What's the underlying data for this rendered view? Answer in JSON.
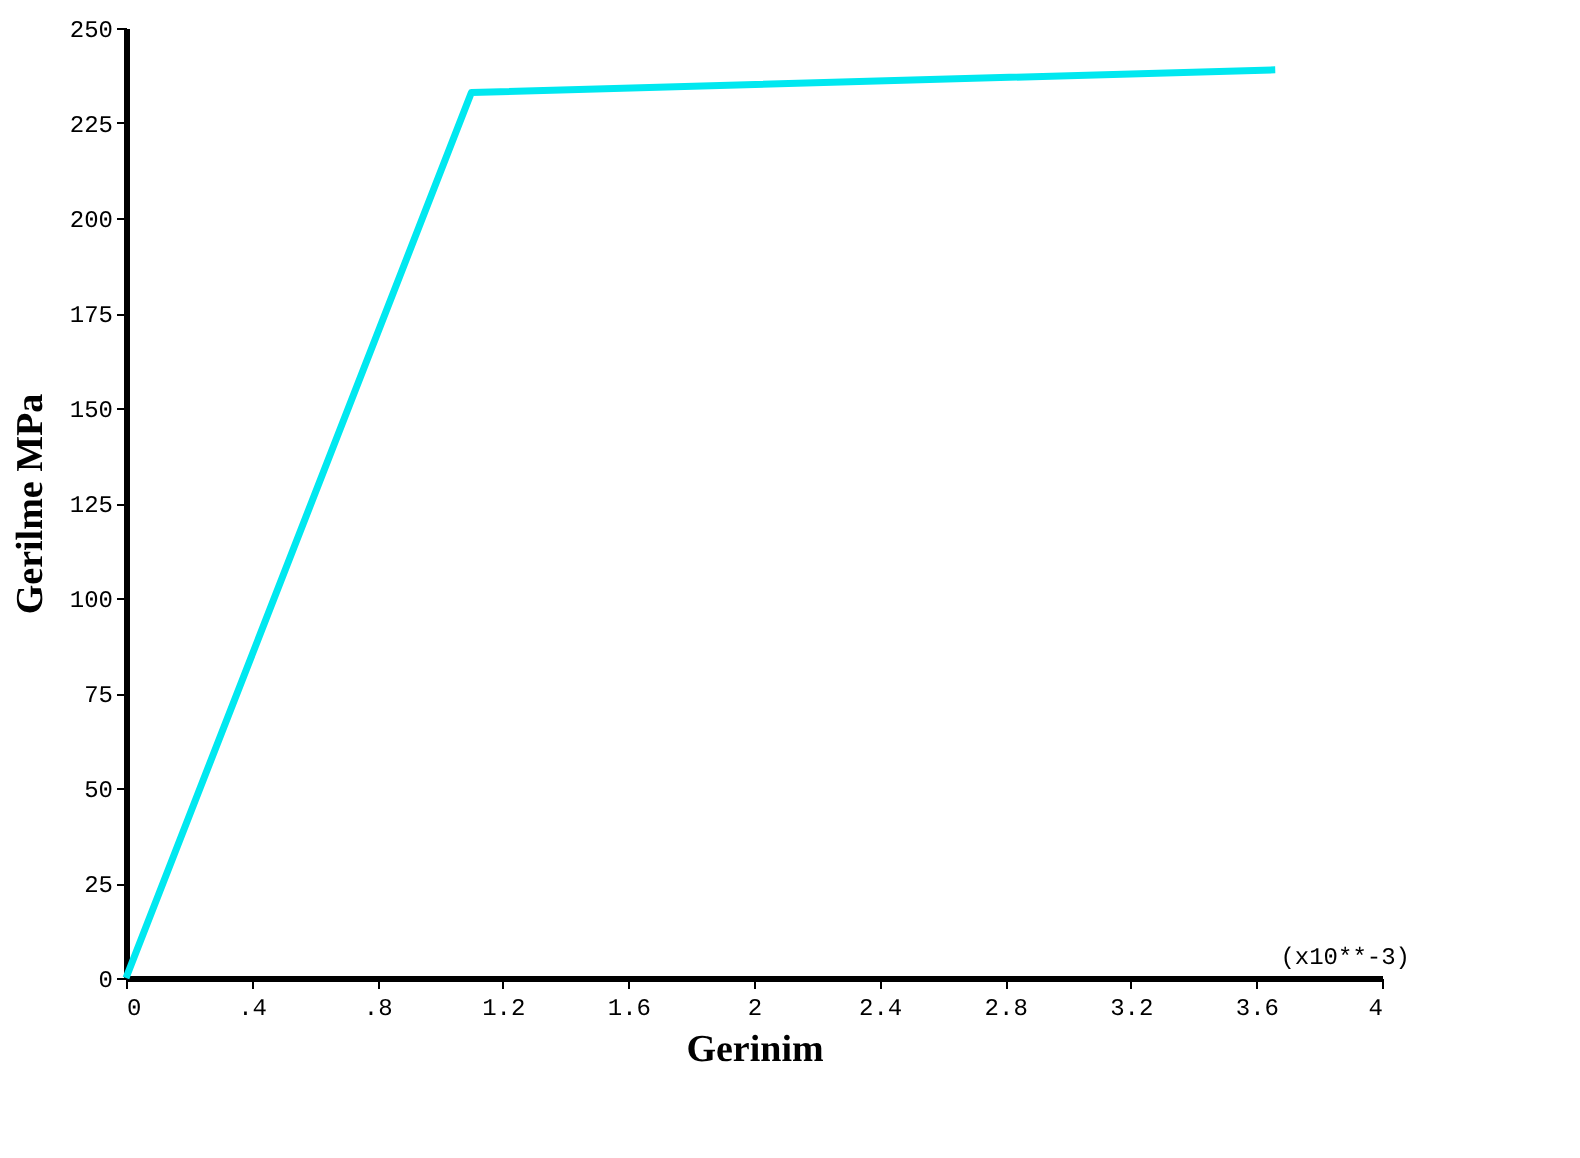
{
  "chart_data": {
    "type": "line",
    "xlabel": "Gerinim",
    "ylabel": "Gerilme MPa",
    "x": [
      0,
      1.1,
      3.66
    ],
    "series": [
      {
        "color": "#00e8f0",
        "values": [
          0,
          233,
          239
        ]
      }
    ],
    "xlim": [
      0,
      4
    ],
    "ylim": [
      0,
      250
    ],
    "xticks": [
      0,
      {
        "value": 0.4,
        "label": ".4"
      },
      {
        "value": 0.8,
        "label": ".8"
      },
      1.2,
      1.6,
      2,
      2.4,
      2.8,
      3.2,
      3.6,
      4
    ],
    "yticks": [
      0,
      25,
      50,
      75,
      100,
      125,
      150,
      175,
      200,
      225,
      250
    ],
    "annotations": [
      "(x10**-3)"
    ],
    "grid": false,
    "marker": "none",
    "line_style": "solid"
  }
}
